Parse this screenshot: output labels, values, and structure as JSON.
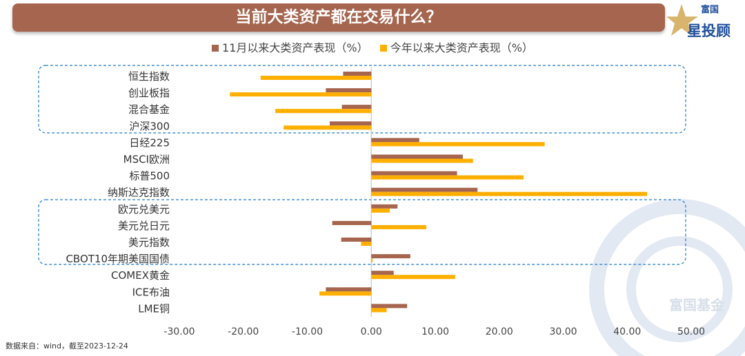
{
  "header": {
    "title": "当前大类资产都在交易什么？",
    "logo_text": "富国星投顾",
    "watermark": "富国基金"
  },
  "source": "数据来自：wind，截至2023-12-24",
  "chart_data": {
    "type": "bar",
    "orientation": "horizontal",
    "categories": [
      "恒生指数",
      "创业板指",
      "混合基金",
      "沪深300",
      "日经225",
      "MSCI欧洲",
      "标普500",
      "纳斯达克指数",
      "欧元兑美元",
      "美元兑日元",
      "美元指数",
      "CBOT10年期美国国债",
      "COMEX黄金",
      "ICE布油",
      "LME铜"
    ],
    "series": [
      {
        "name": "11月以来大类资产表现（%）",
        "color": "#a5654e",
        "values": [
          -4.4,
          -7.1,
          -4.6,
          -6.5,
          7.5,
          14.3,
          13.4,
          16.6,
          4.1,
          -6.1,
          -4.7,
          6.1,
          3.5,
          -7.1,
          5.6
        ]
      },
      {
        "name": "今年以来大类资产表现（%）",
        "color": "#ffaf00",
        "values": [
          -17.3,
          -22.1,
          -15.0,
          -13.7,
          27.1,
          15.9,
          23.8,
          43.1,
          2.9,
          8.6,
          -1.6,
          0.2,
          13.1,
          -8.1,
          2.4
        ]
      }
    ],
    "xlim": [
      -30,
      50
    ],
    "xticks": [
      "-30.00",
      "-20.00",
      "-10.00",
      "0.00",
      "10.00",
      "20.00",
      "30.00",
      "40.00",
      "50.00"
    ],
    "grid": false,
    "legend": "top"
  }
}
